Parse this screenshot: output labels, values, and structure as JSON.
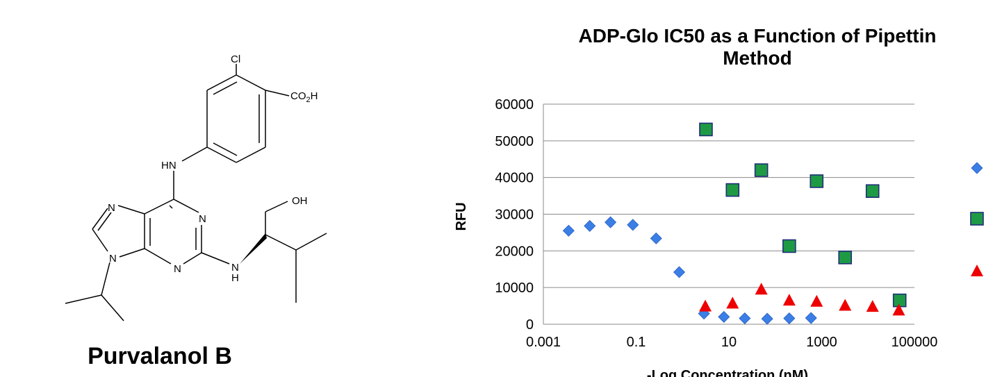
{
  "compound": {
    "name": "Purvalanol B",
    "atoms": {
      "chlorine": "Cl",
      "carboxyl_prefix": "CO",
      "carboxyl_subscript": "2",
      "carboxyl_suffix": "H",
      "hn": "HN",
      "oh": "OH",
      "nitrogen": "N",
      "nh_n": "N",
      "nh_h": "H"
    }
  },
  "chart_data": {
    "type": "scatter",
    "title": "ADP-Glo IC50 as a Function of Pipettin Method",
    "title_lines": [
      "ADP-Glo IC50 as a Function of Pipettin",
      "Method"
    ],
    "xlabel": "-Log Concentration (nM)",
    "ylabel": "RFU",
    "x_scale": "log",
    "xlim": [
      0.001,
      100000
    ],
    "ylim": [
      0,
      60000
    ],
    "x_tick_labels": [
      "0.001",
      "0.1",
      "10",
      "1000",
      "100000"
    ],
    "y_tick_labels": [
      "0",
      "10000",
      "20000",
      "30000",
      "40000",
      "50000",
      "60000"
    ],
    "grid": "horizontal",
    "legend_position": "right (cut off)",
    "series": [
      {
        "marker": "diamond",
        "color": "#3a7ee6",
        "x": [
          0.0035,
          0.01,
          0.028,
          0.085,
          0.27,
          0.85,
          2.9,
          7.8,
          22,
          67,
          200,
          590
        ],
        "y": [
          25500,
          26800,
          27800,
          27100,
          23400,
          14200,
          2900,
          2000,
          1600,
          1500,
          1600,
          1700
        ]
      },
      {
        "marker": "square",
        "color": "#1f9a44",
        "x": [
          3.2,
          12,
          50,
          200,
          780,
          3200,
          12500,
          48000
        ],
        "y": [
          53100,
          36600,
          42000,
          21300,
          39000,
          18200,
          36300,
          6500
        ]
      },
      {
        "marker": "triangle",
        "color": "#ee0000",
        "x": [
          3.1,
          12,
          50,
          200,
          780,
          3200,
          12500,
          46000
        ],
        "y": [
          5000,
          5800,
          9600,
          6600,
          6300,
          5200,
          4900,
          3900
        ]
      }
    ]
  },
  "legend_markers": [
    {
      "marker": "diamond",
      "color": "#3a7ee6"
    },
    {
      "marker": "square",
      "color": "#1f9a44"
    },
    {
      "marker": "triangle",
      "color": "#ee0000"
    }
  ]
}
